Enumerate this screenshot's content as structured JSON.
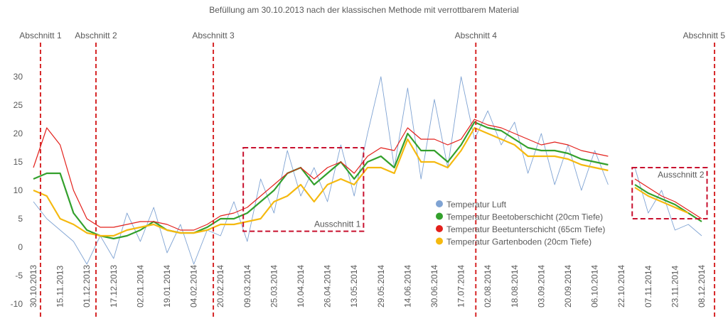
{
  "chart_data": {
    "type": "line",
    "title": "Befüllung am 30.10.2013 nach der klassischen Methode mit verrottbarem Material",
    "x": [
      "30.10.2013",
      null,
      "15.11.2013",
      null,
      "01.12.2013",
      null,
      "17.12.2013",
      null,
      "02.01.2014",
      null,
      "19.01.2014",
      null,
      "04.02.2014",
      null,
      "20.02.2014",
      null,
      "09.03.2014",
      null,
      "25.03.2014",
      null,
      "10.04.2014",
      null,
      "26.04.2014",
      null,
      "13.05.2014",
      null,
      "29.05.2014",
      null,
      "14.06.2014",
      null,
      "30.06.2014",
      null,
      "17.07.2014",
      null,
      "02.08.2014",
      null,
      "18.08.2014",
      null,
      "03.09.2014",
      null,
      "20.09.2014",
      null,
      "06.10.2014",
      null,
      "22.10.2014",
      null,
      "07.11.2014",
      null,
      "23.11.2014",
      null,
      "08.12.2014"
    ],
    "series": [
      {
        "name": "Temperatur Luft",
        "color": "#7fa3d3",
        "width": 0.9,
        "values": [
          8,
          5,
          3,
          1,
          -3,
          2,
          -2,
          6,
          1,
          7,
          -1,
          4,
          -3,
          3,
          2,
          8,
          1,
          12,
          6,
          17,
          9,
          14,
          8,
          18,
          9,
          20,
          30,
          14,
          28,
          12,
          26,
          14,
          30,
          19,
          24,
          18,
          22,
          13,
          20,
          11,
          18,
          10,
          17,
          11,
          null,
          14,
          6,
          10,
          3,
          4,
          2
        ]
      },
      {
        "name": "Temperatur Beetoberschicht (20cm Tiefe)",
        "color": "#33a02c",
        "width": 2.2,
        "values": [
          12,
          13,
          13,
          6,
          3,
          2,
          1.5,
          2,
          3,
          4.5,
          3,
          2.5,
          2.5,
          3.5,
          5,
          5,
          6,
          8,
          10,
          13,
          14,
          11,
          13,
          15,
          12,
          15,
          16,
          14,
          20,
          17,
          17,
          15,
          18,
          22,
          21,
          20.5,
          19,
          17.5,
          17,
          17,
          16.5,
          15.5,
          15,
          14.5,
          null,
          11,
          9.5,
          8.5,
          7.5,
          6,
          4.5
        ]
      },
      {
        "name": "Temperatur Beetunterschicht (65cm Tiefe)",
        "color": "#e3201b",
        "width": 1.2,
        "values": [
          14,
          21,
          18,
          10,
          5,
          3.5,
          3.5,
          4,
          4.5,
          4.5,
          4,
          3,
          3,
          4,
          5.5,
          6,
          7,
          9,
          11,
          13,
          14,
          12,
          14,
          15,
          13,
          16,
          17.5,
          17,
          21,
          19,
          19,
          18,
          19,
          22.5,
          21.5,
          21,
          20,
          19,
          18,
          18.5,
          18,
          17,
          16.5,
          16,
          null,
          12,
          10.5,
          9,
          8,
          6.5,
          5
        ]
      },
      {
        "name": "Temperatur Gartenboden (20cm Tiefe)",
        "color": "#f5b90f",
        "width": 2.2,
        "values": [
          10,
          9,
          5,
          4,
          2.5,
          2,
          2,
          3,
          3.5,
          4,
          3,
          2.5,
          2.5,
          3,
          4,
          4,
          4.5,
          5,
          8,
          9,
          11,
          8,
          11,
          12,
          11,
          14,
          14,
          13,
          19,
          15,
          15,
          14,
          17,
          21,
          20,
          19,
          18,
          16,
          16,
          16,
          15.5,
          14.5,
          14,
          13.5,
          null,
          10.5,
          9,
          8,
          7,
          6,
          null
        ]
      }
    ],
    "ylim": [
      -10,
      35
    ],
    "yticks": [
      -10,
      -5,
      0,
      5,
      10,
      15,
      20,
      25,
      30
    ],
    "grid": false,
    "legend": "center-right",
    "sections": [
      {
        "label": "Abschnitt 1",
        "position": 0.53
      },
      {
        "label": "Abschnitt 2",
        "position": 4.68
      },
      {
        "label": "Abschnitt 3",
        "position": 13.46
      },
      {
        "label": "Abschnitt 4",
        "position": 33.1
      },
      {
        "label": "Abschnitt 5",
        "position": 50.96
      }
    ],
    "zooms": [
      {
        "label": "Ausschnitt 1",
        "xrange": [
          15.7,
          24.7
        ],
        "yrange": [
          2.8,
          17.5
        ],
        "label_corner": "bottom-right"
      },
      {
        "label": "Ausschnitt 2",
        "xrange": [
          44.8,
          50.4
        ],
        "yrange": [
          5,
          14
        ],
        "label_corner": "top-right"
      }
    ]
  }
}
